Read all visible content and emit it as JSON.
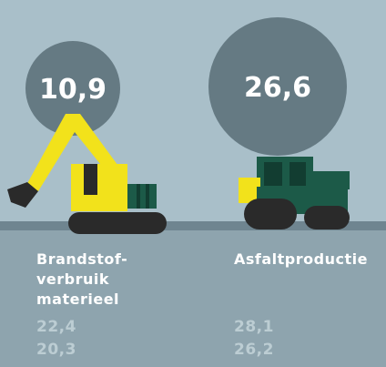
{
  "items": [
    {
      "value": "10,9",
      "label_lines": [
        "Brandstof-",
        "verbruik",
        "materieel"
      ],
      "figures": [
        "22,4",
        "20,3"
      ]
    },
    {
      "value": "26,6",
      "label_lines": [
        "Asfaltproductie"
      ],
      "figures": [
        "28,1",
        "26,2"
      ]
    }
  ]
}
